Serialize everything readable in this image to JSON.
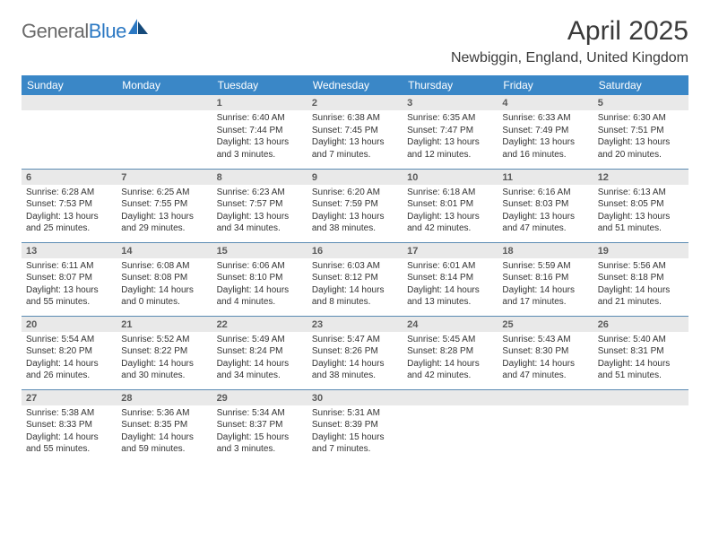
{
  "logo": {
    "word1": "General",
    "word2": "Blue"
  },
  "title": "April 2025",
  "location": "Newbiggin, England, United Kingdom",
  "colors": {
    "header_bg": "#3a87c7",
    "header_fg": "#ffffff",
    "daynum_bg": "#e9e9e9",
    "rule": "#5b8bb3",
    "logo_gray": "#6a6a6a",
    "logo_blue": "#2b78c3"
  },
  "weekdays": [
    "Sunday",
    "Monday",
    "Tuesday",
    "Wednesday",
    "Thursday",
    "Friday",
    "Saturday"
  ],
  "weeks": [
    [
      {
        "n": "",
        "sr": "",
        "ss": "",
        "dl": ""
      },
      {
        "n": "",
        "sr": "",
        "ss": "",
        "dl": ""
      },
      {
        "n": "1",
        "sr": "6:40 AM",
        "ss": "7:44 PM",
        "dl": "13 hours and 3 minutes."
      },
      {
        "n": "2",
        "sr": "6:38 AM",
        "ss": "7:45 PM",
        "dl": "13 hours and 7 minutes."
      },
      {
        "n": "3",
        "sr": "6:35 AM",
        "ss": "7:47 PM",
        "dl": "13 hours and 12 minutes."
      },
      {
        "n": "4",
        "sr": "6:33 AM",
        "ss": "7:49 PM",
        "dl": "13 hours and 16 minutes."
      },
      {
        "n": "5",
        "sr": "6:30 AM",
        "ss": "7:51 PM",
        "dl": "13 hours and 20 minutes."
      }
    ],
    [
      {
        "n": "6",
        "sr": "6:28 AM",
        "ss": "7:53 PM",
        "dl": "13 hours and 25 minutes."
      },
      {
        "n": "7",
        "sr": "6:25 AM",
        "ss": "7:55 PM",
        "dl": "13 hours and 29 minutes."
      },
      {
        "n": "8",
        "sr": "6:23 AM",
        "ss": "7:57 PM",
        "dl": "13 hours and 34 minutes."
      },
      {
        "n": "9",
        "sr": "6:20 AM",
        "ss": "7:59 PM",
        "dl": "13 hours and 38 minutes."
      },
      {
        "n": "10",
        "sr": "6:18 AM",
        "ss": "8:01 PM",
        "dl": "13 hours and 42 minutes."
      },
      {
        "n": "11",
        "sr": "6:16 AM",
        "ss": "8:03 PM",
        "dl": "13 hours and 47 minutes."
      },
      {
        "n": "12",
        "sr": "6:13 AM",
        "ss": "8:05 PM",
        "dl": "13 hours and 51 minutes."
      }
    ],
    [
      {
        "n": "13",
        "sr": "6:11 AM",
        "ss": "8:07 PM",
        "dl": "13 hours and 55 minutes."
      },
      {
        "n": "14",
        "sr": "6:08 AM",
        "ss": "8:08 PM",
        "dl": "14 hours and 0 minutes."
      },
      {
        "n": "15",
        "sr": "6:06 AM",
        "ss": "8:10 PM",
        "dl": "14 hours and 4 minutes."
      },
      {
        "n": "16",
        "sr": "6:03 AM",
        "ss": "8:12 PM",
        "dl": "14 hours and 8 minutes."
      },
      {
        "n": "17",
        "sr": "6:01 AM",
        "ss": "8:14 PM",
        "dl": "14 hours and 13 minutes."
      },
      {
        "n": "18",
        "sr": "5:59 AM",
        "ss": "8:16 PM",
        "dl": "14 hours and 17 minutes."
      },
      {
        "n": "19",
        "sr": "5:56 AM",
        "ss": "8:18 PM",
        "dl": "14 hours and 21 minutes."
      }
    ],
    [
      {
        "n": "20",
        "sr": "5:54 AM",
        "ss": "8:20 PM",
        "dl": "14 hours and 26 minutes."
      },
      {
        "n": "21",
        "sr": "5:52 AM",
        "ss": "8:22 PM",
        "dl": "14 hours and 30 minutes."
      },
      {
        "n": "22",
        "sr": "5:49 AM",
        "ss": "8:24 PM",
        "dl": "14 hours and 34 minutes."
      },
      {
        "n": "23",
        "sr": "5:47 AM",
        "ss": "8:26 PM",
        "dl": "14 hours and 38 minutes."
      },
      {
        "n": "24",
        "sr": "5:45 AM",
        "ss": "8:28 PM",
        "dl": "14 hours and 42 minutes."
      },
      {
        "n": "25",
        "sr": "5:43 AM",
        "ss": "8:30 PM",
        "dl": "14 hours and 47 minutes."
      },
      {
        "n": "26",
        "sr": "5:40 AM",
        "ss": "8:31 PM",
        "dl": "14 hours and 51 minutes."
      }
    ],
    [
      {
        "n": "27",
        "sr": "5:38 AM",
        "ss": "8:33 PM",
        "dl": "14 hours and 55 minutes."
      },
      {
        "n": "28",
        "sr": "5:36 AM",
        "ss": "8:35 PM",
        "dl": "14 hours and 59 minutes."
      },
      {
        "n": "29",
        "sr": "5:34 AM",
        "ss": "8:37 PM",
        "dl": "15 hours and 3 minutes."
      },
      {
        "n": "30",
        "sr": "5:31 AM",
        "ss": "8:39 PM",
        "dl": "15 hours and 7 minutes."
      },
      {
        "n": "",
        "sr": "",
        "ss": "",
        "dl": ""
      },
      {
        "n": "",
        "sr": "",
        "ss": "",
        "dl": ""
      },
      {
        "n": "",
        "sr": "",
        "ss": "",
        "dl": ""
      }
    ]
  ],
  "labels": {
    "sunrise": "Sunrise: ",
    "sunset": "Sunset: ",
    "daylight": "Daylight: "
  }
}
